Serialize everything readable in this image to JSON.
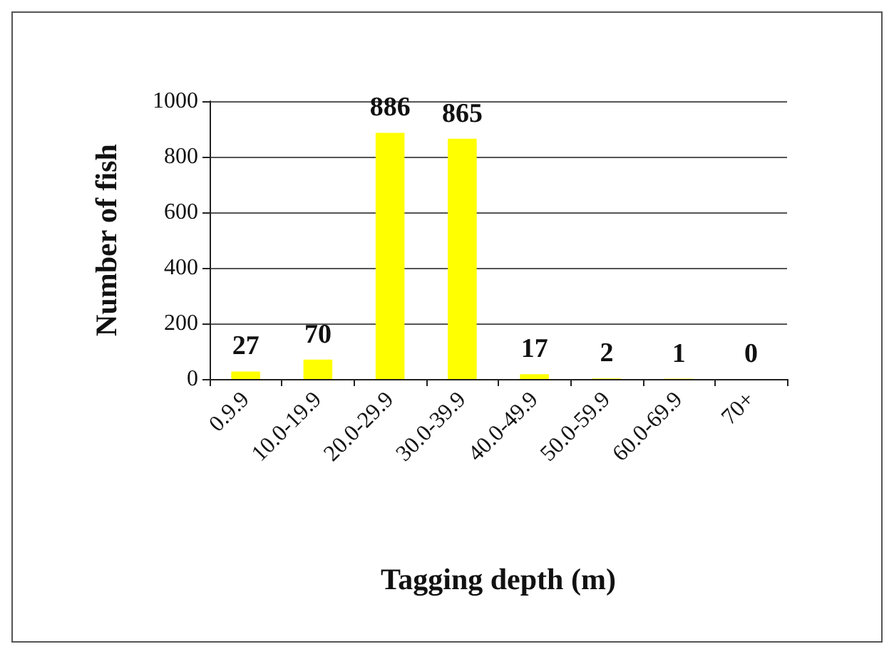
{
  "chart_data": {
    "type": "bar",
    "xlabel": "Tagging depth (m)",
    "ylabel": "Number of fish",
    "categories": [
      "0.9.9",
      "10.0-19.9",
      "20.0-29.9",
      "30.0-39.9",
      "40.0-49.9",
      "50.0-59.9",
      "60.0-69.9",
      "70+"
    ],
    "values": [
      27,
      70,
      886,
      865,
      17,
      2,
      1,
      0
    ],
    "color": "#ffff00",
    "ylim": [
      0,
      1000
    ],
    "yticks": [
      0,
      200,
      400,
      600,
      800,
      1000
    ],
    "grid": "y",
    "data_labels": true
  }
}
